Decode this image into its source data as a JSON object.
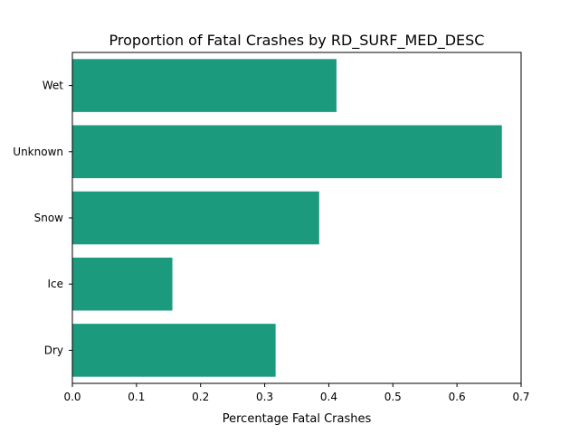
{
  "chart_data": {
    "type": "bar",
    "orientation": "horizontal",
    "title": "Proportion of Fatal Crashes by RD_SURF_MED_DESC",
    "xlabel": "Percentage Fatal Crashes",
    "ylabel": "",
    "categories": [
      "Dry",
      "Ice",
      "Snow",
      "Unknown",
      "Wet"
    ],
    "values": [
      0.317,
      0.156,
      0.385,
      0.67,
      0.412
    ],
    "xlim": [
      0,
      0.7
    ],
    "xticks": [
      "0.0",
      "0.1",
      "0.2",
      "0.3",
      "0.4",
      "0.5",
      "0.6",
      "0.7"
    ],
    "bar_color": "#1b9a7e",
    "grid": false,
    "legend": "none"
  }
}
